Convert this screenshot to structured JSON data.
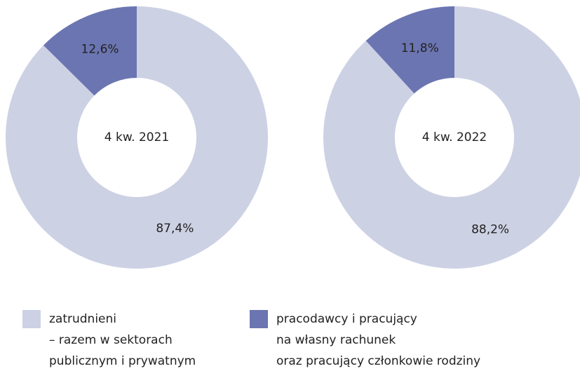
{
  "chart_data": [
    {
      "type": "pie",
      "label": "4 kw. 2021",
      "values": [
        87.4,
        12.6
      ],
      "value_labels": [
        "87,4%",
        "12,6%"
      ]
    },
    {
      "type": "pie",
      "label": "4 kw. 2022",
      "values": [
        88.2,
        11.8
      ],
      "value_labels": [
        "88,2%",
        "11,8%"
      ]
    }
  ],
  "legend": {
    "items": [
      {
        "name": [
          "zatrudnieni",
          "– razem w sektorach",
          "publicznym i prywatnym"
        ],
        "color": "#cdd1e4"
      },
      {
        "name": [
          "pracodawcy i pracujący",
          "na własny rachunek",
          "oraz pracujący członkowie rodziny"
        ],
        "color": "#6b75b1"
      }
    ]
  }
}
